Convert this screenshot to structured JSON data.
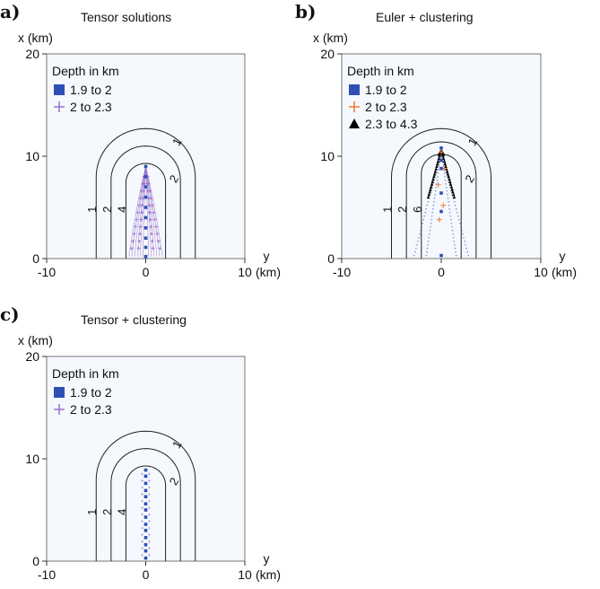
{
  "colors": {
    "blue_marker": "#2f4fb4",
    "purple_marker": "#9b6fcf",
    "orange_marker": "#f07a3a",
    "black_marker": "#000000",
    "contour": "#222222"
  },
  "chart_data": [
    {
      "id": "a",
      "panel_letter": "a)",
      "title": "Tensor solutions",
      "xlabel": "x (km)",
      "ylabel_top": "y",
      "ylabel_bottom": "(km)",
      "type": "scatter",
      "x_axis_ticks": [
        "-10",
        "0",
        "10"
      ],
      "y_axis_ticks": [
        "0",
        "10",
        "20"
      ],
      "xlim": [
        -10,
        10
      ],
      "ylim": [
        0,
        20
      ],
      "legend": {
        "title": "Depth in km",
        "entries": [
          {
            "marker": "square",
            "color": "#2f4fb4",
            "label": "1.9 to 2"
          },
          {
            "marker": "plus",
            "color": "#9b6fcf",
            "label": "2 to 2.3"
          }
        ]
      },
      "contours": [
        {
          "label": "1",
          "x_half_width": 5,
          "apex": 12.7
        },
        {
          "label": "2",
          "x_half_width": 3.5,
          "apex": 11.0
        },
        {
          "label": "4",
          "x_half_width": 2.0,
          "apex": 9.3
        }
      ],
      "contour_labels": [
        "1",
        "2",
        "4",
        "1",
        "2"
      ],
      "solutions": {
        "blue_x": [
          0,
          0,
          0,
          0,
          0,
          0,
          0,
          0,
          0,
          0
        ],
        "blue_y": [
          0.2,
          1.1,
          2.0,
          3.0,
          4.0,
          5.0,
          6.0,
          7.0,
          8.0,
          9.0
        ],
        "purple_fan": true
      }
    },
    {
      "id": "b",
      "panel_letter": "b)",
      "title": "Euler + clustering",
      "xlabel": "x (km)",
      "ylabel_top": "y",
      "ylabel_bottom": "(km)",
      "type": "scatter",
      "x_axis_ticks": [
        "-10",
        "0",
        "10"
      ],
      "y_axis_ticks": [
        "0",
        "10",
        "20"
      ],
      "xlim": [
        -10,
        10
      ],
      "ylim": [
        0,
        20
      ],
      "legend": {
        "title": "Depth in km",
        "entries": [
          {
            "marker": "square",
            "color": "#2f4fb4",
            "label": "1.9 to 2"
          },
          {
            "marker": "plus",
            "color": "#f07a3a",
            "label": "2 to 2.3"
          },
          {
            "marker": "triangle",
            "color": "#000000",
            "label": "2.3 to 4.3"
          }
        ]
      },
      "contours": [
        {
          "label": "1",
          "x_half_width": 5,
          "apex": 12.7
        },
        {
          "label": "2",
          "x_half_width": 3.5,
          "apex": 11.4
        },
        {
          "label": "6",
          "x_half_width": 2.0,
          "apex": 10.2
        }
      ],
      "contour_labels": [
        "1",
        "2",
        "6",
        "1",
        "2"
      ],
      "solutions": {
        "blue_x": [
          0,
          0,
          0,
          0,
          0,
          0
        ],
        "blue_y": [
          10.8,
          9.6,
          8.8,
          6.4,
          4.6,
          0.3
        ],
        "triangle_cluster_apex": [
          0,
          10.3
        ]
      }
    },
    {
      "id": "c",
      "panel_letter": "c)",
      "title": "Tensor + clustering",
      "xlabel": "x (km)",
      "ylabel_top": "y",
      "ylabel_bottom": "(km)",
      "type": "scatter",
      "x_axis_ticks": [
        "-10",
        "0",
        "10"
      ],
      "y_axis_ticks": [
        "0",
        "10",
        "20"
      ],
      "xlim": [
        -10,
        10
      ],
      "ylim": [
        0,
        20
      ],
      "legend": {
        "title": "Depth in km",
        "entries": [
          {
            "marker": "square",
            "color": "#2f4fb4",
            "label": "1.9 to 2"
          },
          {
            "marker": "plus",
            "color": "#9b6fcf",
            "label": "2 to 2.3"
          }
        ]
      },
      "contours": [
        {
          "label": "1",
          "x_half_width": 5,
          "apex": 12.7
        },
        {
          "label": "2",
          "x_half_width": 3.5,
          "apex": 11.0
        },
        {
          "label": "4",
          "x_half_width": 2.0,
          "apex": 9.3
        }
      ],
      "contour_labels": [
        "1",
        "2",
        "4",
        "1",
        "2"
      ],
      "solutions": {
        "blue_x": [
          0,
          0,
          0,
          0,
          0,
          0,
          0,
          0,
          0,
          0,
          0,
          0,
          0,
          0
        ],
        "blue_y": [
          0.3,
          1.0,
          1.6,
          2.3,
          3.0,
          3.6,
          4.3,
          5.0,
          5.6,
          6.3,
          6.9,
          7.6,
          8.3,
          8.9
        ]
      }
    }
  ]
}
